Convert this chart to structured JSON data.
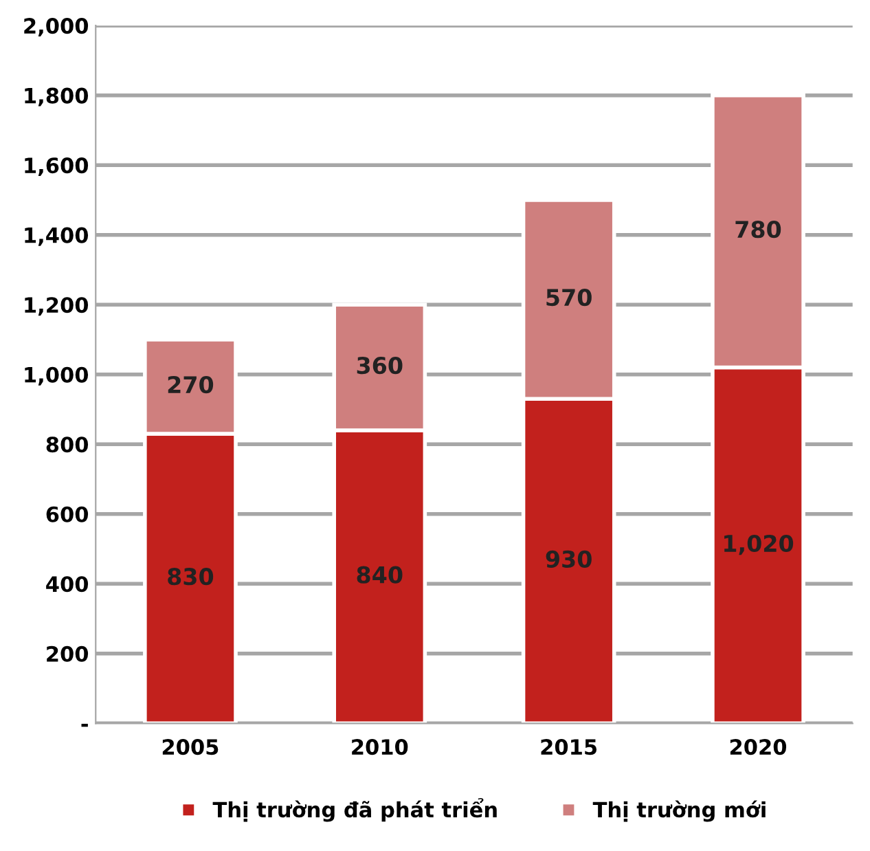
{
  "chart_data": {
    "type": "bar",
    "stacked": true,
    "categories": [
      "2005",
      "2010",
      "2015",
      "2020"
    ],
    "series": [
      {
        "name": "Thị trường đã phát triển",
        "color": "#c2211d",
        "values": [
          830,
          840,
          930,
          1020
        ],
        "value_labels": [
          "830",
          "840",
          "930",
          "1,020"
        ]
      },
      {
        "name": "Thị trường mới",
        "color": "#cf7f7e",
        "values": [
          270,
          360,
          570,
          780
        ],
        "value_labels": [
          "270",
          "360",
          "570",
          "780"
        ]
      }
    ],
    "ylim": [
      0,
      2000
    ],
    "yticks": [
      {
        "value": 0,
        "label": "-"
      },
      {
        "value": 200,
        "label": "200"
      },
      {
        "value": 400,
        "label": "400"
      },
      {
        "value": 600,
        "label": "600"
      },
      {
        "value": 800,
        "label": "800"
      },
      {
        "value": 1000,
        "label": "1,000"
      },
      {
        "value": 1200,
        "label": "1,200"
      },
      {
        "value": 1400,
        "label": "1,400"
      },
      {
        "value": 1600,
        "label": "1,600"
      },
      {
        "value": 1800,
        "label": "1,800"
      },
      {
        "value": 2000,
        "label": "2,000"
      }
    ],
    "grid": "y",
    "legend": "bottom"
  }
}
